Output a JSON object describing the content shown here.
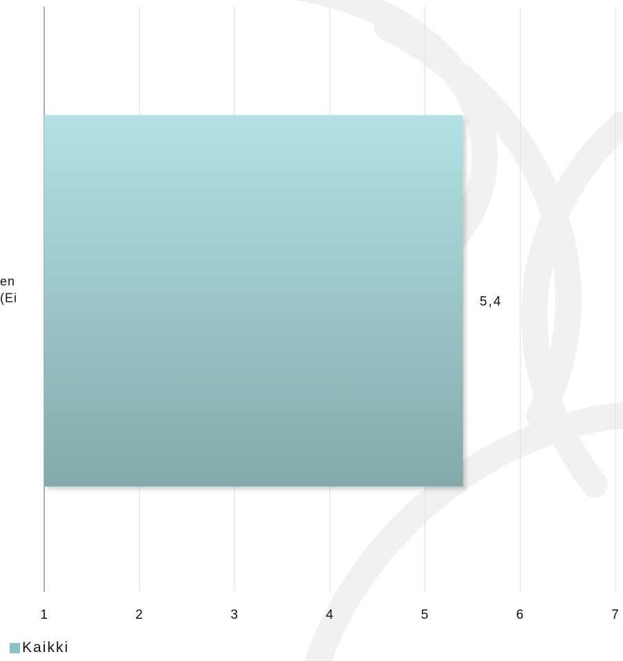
{
  "chart_data": {
    "type": "bar",
    "orientation": "horizontal",
    "categories": [
      "en\n(Ei"
    ],
    "series": [
      {
        "name": "Kaikki",
        "values": [
          5.4
        ],
        "value_labels": [
          "5,4"
        ]
      }
    ],
    "xlim": [
      1,
      7
    ],
    "x_ticks": [
      1,
      2,
      3,
      4,
      5,
      6,
      7
    ],
    "x_tick_labels": [
      "1",
      "2",
      "3",
      "4",
      "5",
      "6",
      "7"
    ],
    "grid": true,
    "legend_position": "bottom-left",
    "colors": {
      "bar_top": "#b3e1e5",
      "bar_bottom": "#84aaab",
      "grid": "#d6e2ea",
      "axis": "#555555",
      "legend_swatch": "#8fc2c6"
    }
  }
}
